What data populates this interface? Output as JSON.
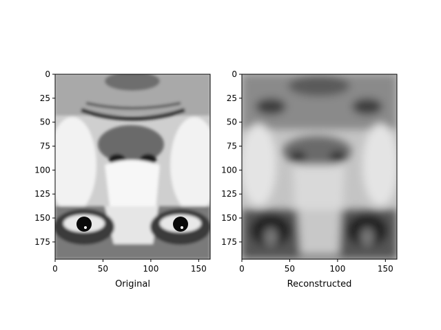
{
  "figure": {
    "background": "#ffffff",
    "colormap": "gray"
  },
  "chart_data": [
    {
      "type": "heatmap",
      "name": "original",
      "title": "",
      "xlabel": "Original",
      "ylabel": "",
      "image_size": {
        "width": 162,
        "height": 193
      },
      "xlim": [
        0,
        162
      ],
      "ylim": [
        193,
        0
      ],
      "xticks": [
        0,
        50,
        100,
        150
      ],
      "yticks": [
        0,
        25,
        50,
        75,
        100,
        125,
        150,
        175
      ],
      "content": "grayscale face image, vertically flipped: mouth near top, nose at center, eyes near bottom"
    },
    {
      "type": "heatmap",
      "name": "reconstructed",
      "title": "",
      "xlabel": "Reconstructed",
      "ylabel": "",
      "image_size": {
        "width": 162,
        "height": 193
      },
      "xlim": [
        0,
        162
      ],
      "ylim": [
        193,
        0
      ],
      "xticks": [
        0,
        50,
        100,
        150
      ],
      "yticks": [
        0,
        25,
        50,
        75,
        100,
        125,
        150,
        175
      ],
      "content": "blurred low-rank reconstruction of the same face"
    }
  ]
}
